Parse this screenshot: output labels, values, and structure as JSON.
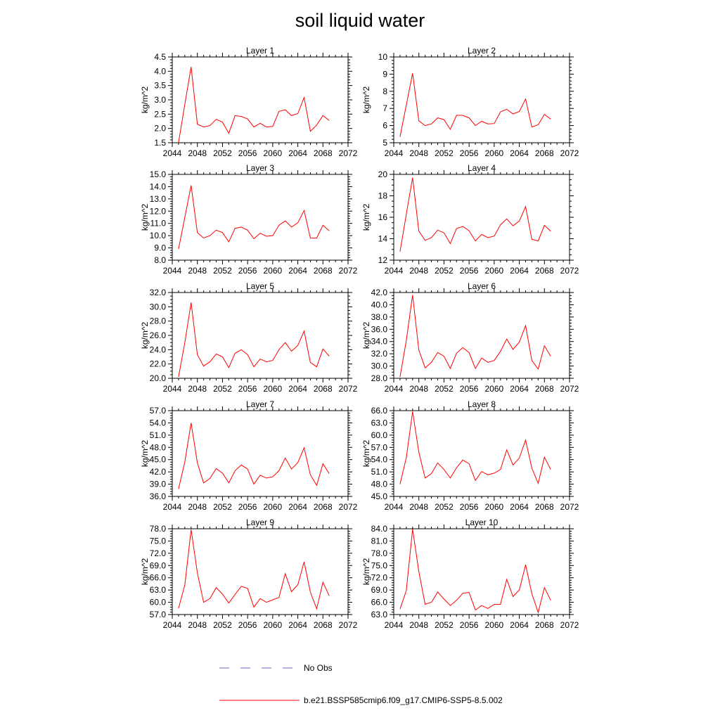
{
  "figure": {
    "title": "soil liquid water"
  },
  "legend": {
    "entries": [
      {
        "label": "No Obs",
        "style": "dashed",
        "color": "#6666cc"
      },
      {
        "label": "b.e21.BSSP585cmip6.f09_g17.CMIP6-SSP5-8.5.002",
        "style": "solid",
        "color": "#ff0000"
      }
    ]
  },
  "chart_data": [
    {
      "type": "line",
      "title": "Layer 1",
      "ylabel": "kg/m^2",
      "xlim": [
        2044,
        2072
      ],
      "ylim": [
        1.5,
        4.5
      ],
      "xticks": [
        "2044",
        "2048",
        "2052",
        "2056",
        "2060",
        "2064",
        "2068",
        "2072"
      ],
      "yticks": [
        "1.5",
        "2.0",
        "2.5",
        "3.0",
        "3.5",
        "4.0",
        "4.5"
      ],
      "series": [
        {
          "color": "#ff0000",
          "x": [
            2045,
            2046,
            2047,
            2048,
            2049,
            2050,
            2051,
            2052,
            2053,
            2054,
            2055,
            2056,
            2057,
            2058,
            2059,
            2060,
            2061,
            2062,
            2063,
            2064,
            2065,
            2066,
            2067,
            2068,
            2069
          ],
          "y": [
            1.5,
            2.85,
            4.15,
            2.15,
            2.05,
            2.1,
            2.32,
            2.22,
            1.83,
            2.45,
            2.42,
            2.33,
            2.05,
            2.18,
            2.05,
            2.07,
            2.6,
            2.65,
            2.45,
            2.52,
            3.08,
            1.9,
            2.12,
            2.45,
            2.28
          ]
        }
      ]
    },
    {
      "type": "line",
      "title": "Layer 2",
      "ylabel": "kg/m^2",
      "xlim": [
        2044,
        2072
      ],
      "ylim": [
        5,
        10
      ],
      "xticks": [
        "2044",
        "2048",
        "2052",
        "2056",
        "2060",
        "2064",
        "2068",
        "2072"
      ],
      "yticks": [
        "5",
        "6",
        "7",
        "8",
        "9",
        "10"
      ],
      "series": [
        {
          "color": "#ff0000",
          "x": [
            2045,
            2046,
            2047,
            2048,
            2049,
            2050,
            2051,
            2052,
            2053,
            2054,
            2055,
            2056,
            2057,
            2058,
            2059,
            2060,
            2061,
            2062,
            2063,
            2064,
            2065,
            2066,
            2067,
            2068,
            2069
          ],
          "y": [
            5.35,
            7.2,
            9.05,
            6.28,
            6.0,
            6.1,
            6.45,
            6.35,
            5.78,
            6.6,
            6.6,
            6.45,
            6.0,
            6.25,
            6.1,
            6.12,
            6.8,
            6.95,
            6.68,
            6.82,
            7.55,
            5.92,
            6.05,
            6.65,
            6.38
          ]
        }
      ]
    },
    {
      "type": "line",
      "title": "Layer 3",
      "ylabel": "kg/m^2",
      "xlim": [
        2044,
        2072
      ],
      "ylim": [
        8.0,
        15.0
      ],
      "xticks": [
        "2044",
        "2048",
        "2052",
        "2056",
        "2060",
        "2064",
        "2068",
        "2072"
      ],
      "yticks": [
        "8.0",
        "9.0",
        "10.0",
        "11.0",
        "12.0",
        "13.0",
        "14.0",
        "15.0"
      ],
      "series": [
        {
          "color": "#ff0000",
          "x": [
            2045,
            2046,
            2047,
            2048,
            2049,
            2050,
            2051,
            2052,
            2053,
            2054,
            2055,
            2056,
            2057,
            2058,
            2059,
            2060,
            2061,
            2062,
            2063,
            2064,
            2065,
            2066,
            2067,
            2068,
            2069
          ],
          "y": [
            8.9,
            11.5,
            14.1,
            10.25,
            9.8,
            10.0,
            10.45,
            10.25,
            9.5,
            10.6,
            10.7,
            10.45,
            9.75,
            10.2,
            9.95,
            10.0,
            10.85,
            11.2,
            10.7,
            11.05,
            12.05,
            9.8,
            9.8,
            10.85,
            10.4
          ]
        }
      ]
    },
    {
      "type": "line",
      "title": "Layer 4",
      "ylabel": "kg/m^2",
      "xlim": [
        2044,
        2072
      ],
      "ylim": [
        12,
        20
      ],
      "xticks": [
        "2044",
        "2048",
        "2052",
        "2056",
        "2060",
        "2064",
        "2068",
        "2072"
      ],
      "yticks": [
        "12",
        "14",
        "16",
        "18",
        "20"
      ],
      "series": [
        {
          "color": "#ff0000",
          "x": [
            2045,
            2046,
            2047,
            2048,
            2049,
            2050,
            2051,
            2052,
            2053,
            2054,
            2055,
            2056,
            2057,
            2058,
            2059,
            2060,
            2061,
            2062,
            2063,
            2064,
            2065,
            2066,
            2067,
            2068,
            2069
          ],
          "y": [
            12.8,
            16.3,
            19.7,
            14.7,
            13.85,
            14.1,
            14.8,
            14.55,
            13.55,
            14.95,
            15.15,
            14.75,
            13.8,
            14.4,
            14.1,
            14.25,
            15.3,
            15.85,
            15.2,
            15.65,
            17.0,
            13.95,
            13.8,
            15.25,
            14.7
          ]
        }
      ]
    },
    {
      "type": "line",
      "title": "Layer 5",
      "ylabel": "kg/m^2",
      "xlim": [
        2044,
        2072
      ],
      "ylim": [
        20.0,
        32.0
      ],
      "xticks": [
        "2044",
        "2048",
        "2052",
        "2056",
        "2060",
        "2064",
        "2068",
        "2072"
      ],
      "yticks": [
        "20.0",
        "22.0",
        "24.0",
        "26.0",
        "28.0",
        "30.0",
        "32.0"
      ],
      "series": [
        {
          "color": "#ff0000",
          "x": [
            2045,
            2046,
            2047,
            2048,
            2049,
            2050,
            2051,
            2052,
            2053,
            2054,
            2055,
            2056,
            2057,
            2058,
            2059,
            2060,
            2061,
            2062,
            2063,
            2064,
            2065,
            2066,
            2067,
            2068,
            2069
          ],
          "y": [
            20.2,
            25.0,
            30.6,
            23.3,
            21.7,
            22.3,
            23.4,
            23.0,
            21.5,
            23.5,
            24.0,
            23.3,
            21.6,
            22.7,
            22.3,
            22.5,
            24.0,
            25.0,
            23.8,
            24.6,
            26.6,
            22.2,
            21.6,
            24.1,
            23.1
          ]
        }
      ]
    },
    {
      "type": "line",
      "title": "Layer 6",
      "ylabel": "kg/m^2",
      "xlim": [
        2044,
        2072
      ],
      "ylim": [
        28.0,
        42.0
      ],
      "xticks": [
        "2044",
        "2048",
        "2052",
        "2056",
        "2060",
        "2064",
        "2068",
        "2072"
      ],
      "yticks": [
        "28.0",
        "30.0",
        "32.0",
        "34.0",
        "36.0",
        "38.0",
        "40.0",
        "42.0"
      ],
      "series": [
        {
          "color": "#ff0000",
          "x": [
            2045,
            2046,
            2047,
            2048,
            2049,
            2050,
            2051,
            2052,
            2053,
            2054,
            2055,
            2056,
            2057,
            2058,
            2059,
            2060,
            2061,
            2062,
            2063,
            2064,
            2065,
            2066,
            2067,
            2068,
            2069
          ],
          "y": [
            28.2,
            34.2,
            41.6,
            32.6,
            29.7,
            30.6,
            32.2,
            31.6,
            29.6,
            32.1,
            33.0,
            32.2,
            29.6,
            31.3,
            30.6,
            30.9,
            32.4,
            34.4,
            32.7,
            33.9,
            36.6,
            30.9,
            29.5,
            33.3,
            31.6
          ]
        }
      ]
    },
    {
      "type": "line",
      "title": "Layer 7",
      "ylabel": "kg/m^2",
      "xlim": [
        2044,
        2072
      ],
      "ylim": [
        36.0,
        57.0
      ],
      "xticks": [
        "2044",
        "2048",
        "2052",
        "2056",
        "2060",
        "2064",
        "2068",
        "2072"
      ],
      "yticks": [
        "36.0",
        "39.0",
        "42.0",
        "45.0",
        "48.0",
        "51.0",
        "54.0",
        "57.0"
      ],
      "series": [
        {
          "color": "#ff0000",
          "x": [
            2045,
            2046,
            2047,
            2048,
            2049,
            2050,
            2051,
            2052,
            2053,
            2054,
            2055,
            2056,
            2057,
            2058,
            2059,
            2060,
            2061,
            2062,
            2063,
            2064,
            2065,
            2066,
            2067,
            2068,
            2069
          ],
          "y": [
            37.8,
            44.5,
            54.0,
            44.2,
            39.3,
            40.4,
            42.8,
            41.7,
            39.3,
            42.3,
            43.7,
            42.7,
            39.0,
            41.2,
            40.5,
            40.8,
            42.3,
            45.4,
            42.7,
            44.3,
            47.9,
            41.3,
            38.7,
            44.0,
            41.6
          ]
        }
      ]
    },
    {
      "type": "line",
      "title": "Layer 8",
      "ylabel": "kg/m^2",
      "xlim": [
        2044,
        2072
      ],
      "ylim": [
        45.0,
        66.0
      ],
      "xticks": [
        "2044",
        "2048",
        "2052",
        "2056",
        "2060",
        "2064",
        "2068",
        "2072"
      ],
      "yticks": [
        "45.0",
        "48.0",
        "51.0",
        "54.0",
        "57.0",
        "60.0",
        "63.0",
        "66.0"
      ],
      "series": [
        {
          "color": "#ff0000",
          "x": [
            2045,
            2046,
            2047,
            2048,
            2049,
            2050,
            2051,
            2052,
            2053,
            2054,
            2055,
            2056,
            2057,
            2058,
            2059,
            2060,
            2061,
            2062,
            2063,
            2064,
            2065,
            2066,
            2067,
            2068,
            2069
          ],
          "y": [
            48.0,
            54.5,
            65.8,
            55.8,
            49.5,
            50.6,
            53.2,
            51.6,
            49.5,
            52.0,
            53.9,
            53.0,
            48.9,
            51.1,
            50.3,
            50.7,
            51.6,
            56.4,
            52.7,
            54.4,
            58.8,
            51.9,
            48.2,
            54.6,
            51.6
          ]
        }
      ]
    },
    {
      "type": "line",
      "title": "Layer 9",
      "ylabel": "kg/m^2",
      "xlim": [
        2044,
        2072
      ],
      "ylim": [
        57.0,
        78.0
      ],
      "xticks": [
        "2044",
        "2048",
        "2052",
        "2056",
        "2060",
        "2064",
        "2068",
        "2072"
      ],
      "yticks": [
        "57.0",
        "60.0",
        "63.0",
        "66.0",
        "69.0",
        "72.0",
        "75.0",
        "78.0"
      ],
      "series": [
        {
          "color": "#ff0000",
          "x": [
            2045,
            2046,
            2047,
            2048,
            2049,
            2050,
            2051,
            2052,
            2053,
            2054,
            2055,
            2056,
            2057,
            2058,
            2059,
            2060,
            2061,
            2062,
            2063,
            2064,
            2065,
            2066,
            2067,
            2068,
            2069
          ],
          "y": [
            58.5,
            64.3,
            77.8,
            67.2,
            60.0,
            60.9,
            63.6,
            62.0,
            59.8,
            61.9,
            63.9,
            63.4,
            58.8,
            60.9,
            60.0,
            60.6,
            61.2,
            67.0,
            62.6,
            64.3,
            69.9,
            62.5,
            58.4,
            64.9,
            61.6
          ]
        }
      ]
    },
    {
      "type": "line",
      "title": "Layer 10",
      "ylabel": "kg/m^2",
      "xlim": [
        2044,
        2072
      ],
      "ylim": [
        63.0,
        84.0
      ],
      "xticks": [
        "2044",
        "2048",
        "2052",
        "2056",
        "2060",
        "2064",
        "2068",
        "2072"
      ],
      "yticks": [
        "63.0",
        "66.0",
        "69.0",
        "72.0",
        "75.0",
        "78.0",
        "81.0",
        "84.0"
      ],
      "series": [
        {
          "color": "#ff0000",
          "x": [
            2045,
            2046,
            2047,
            2048,
            2049,
            2050,
            2051,
            2052,
            2053,
            2054,
            2055,
            2056,
            2057,
            2058,
            2059,
            2060,
            2061,
            2062,
            2063,
            2064,
            2065,
            2066,
            2067,
            2068,
            2069
          ],
          "y": [
            64.3,
            68.9,
            83.9,
            73.5,
            65.5,
            66.0,
            68.5,
            66.8,
            65.2,
            66.5,
            68.2,
            68.4,
            64.1,
            65.2,
            64.5,
            65.5,
            65.5,
            71.6,
            67.4,
            69.0,
            75.2,
            68.1,
            63.5,
            69.6,
            66.5
          ]
        }
      ]
    }
  ]
}
